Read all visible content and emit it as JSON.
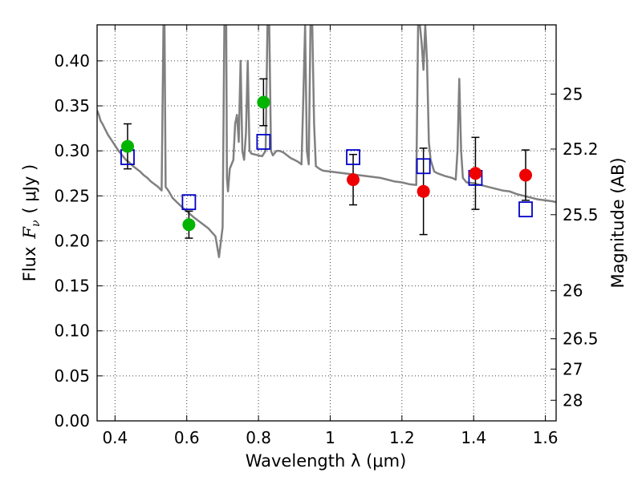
{
  "chart_data": {
    "type": "scatter",
    "xlabel": "Wavelength  λ (μm)",
    "ylabel_prefix": "Flux",
    "ylabel_symbol": "F",
    "ylabel_sub": "ν",
    "ylabel_unit": "( μJy )",
    "ylabel_right": "Magnitude (AB)",
    "xlim": [
      0.35,
      1.63
    ],
    "ylim": [
      0.0,
      0.44
    ],
    "grid": true,
    "x_ticks": [
      0.4,
      0.6,
      0.8,
      1.0,
      1.2,
      1.4,
      1.6
    ],
    "x_tick_labels": [
      "0.4",
      "0.6",
      "0.8",
      "1",
      "1.2",
      "1.4",
      "1.6"
    ],
    "y_ticks": [
      0.0,
      0.05,
      0.1,
      0.15,
      0.2,
      0.25,
      0.3,
      0.35,
      0.4
    ],
    "y_tick_labels": [
      "0.00",
      "0.05",
      "0.10",
      "0.15",
      "0.20",
      "0.25",
      "0.30",
      "0.35",
      "0.40"
    ],
    "right_ticks": [
      {
        "label": "25",
        "mag": 25.0
      },
      {
        "label": "25.2",
        "mag": 25.2
      },
      {
        "label": "25.5",
        "mag": 25.5
      },
      {
        "label": "26",
        "mag": 26.0
      },
      {
        "label": "26.5",
        "mag": 26.5
      },
      {
        "label": "27",
        "mag": 27.0
      },
      {
        "label": "28",
        "mag": 28.0
      }
    ],
    "series": [
      {
        "name": "model spectrum",
        "kind": "line",
        "color": "#808080",
        "x": [
          0.35,
          0.355,
          0.36,
          0.365,
          0.37,
          0.375,
          0.38,
          0.39,
          0.4,
          0.41,
          0.42,
          0.43,
          0.44,
          0.45,
          0.46,
          0.47,
          0.48,
          0.49,
          0.5,
          0.51,
          0.52,
          0.53,
          0.535,
          0.538,
          0.541,
          0.55,
          0.56,
          0.57,
          0.58,
          0.6,
          0.62,
          0.64,
          0.66,
          0.68,
          0.69,
          0.7,
          0.705,
          0.71,
          0.712,
          0.715,
          0.72,
          0.73,
          0.735,
          0.74,
          0.745,
          0.75,
          0.755,
          0.76,
          0.765,
          0.77,
          0.775,
          0.78,
          0.79,
          0.8,
          0.81,
          0.82,
          0.825,
          0.83,
          0.835,
          0.84,
          0.85,
          0.86,
          0.87,
          0.88,
          0.89,
          0.9,
          0.91,
          0.92,
          0.925,
          0.93,
          0.935,
          0.94,
          0.945,
          0.95,
          0.955,
          0.96,
          0.97,
          0.98,
          1.0,
          1.02,
          1.04,
          1.06,
          1.08,
          1.1,
          1.12,
          1.14,
          1.16,
          1.18,
          1.2,
          1.22,
          1.24,
          1.245,
          1.25,
          1.255,
          1.26,
          1.265,
          1.27,
          1.275,
          1.28,
          1.29,
          1.3,
          1.32,
          1.34,
          1.35,
          1.355,
          1.36,
          1.365,
          1.37,
          1.38,
          1.4,
          1.42,
          1.44,
          1.46,
          1.48,
          1.5,
          1.52,
          1.54,
          1.56,
          1.58,
          1.6,
          1.62,
          1.63
        ],
        "y": [
          0.345,
          0.34,
          0.333,
          0.33,
          0.326,
          0.322,
          0.318,
          0.312,
          0.306,
          0.3,
          0.295,
          0.29,
          0.287,
          0.283,
          0.28,
          0.277,
          0.273,
          0.27,
          0.266,
          0.263,
          0.26,
          0.256,
          0.44,
          0.44,
          0.26,
          0.255,
          0.248,
          0.244,
          0.24,
          0.233,
          0.226,
          0.22,
          0.214,
          0.205,
          0.182,
          0.215,
          0.44,
          0.44,
          0.27,
          0.255,
          0.28,
          0.29,
          0.33,
          0.34,
          0.31,
          0.4,
          0.3,
          0.29,
          0.32,
          0.4,
          0.3,
          0.297,
          0.296,
          0.295,
          0.294,
          0.3,
          0.44,
          0.44,
          0.3,
          0.295,
          0.3,
          0.3,
          0.298,
          0.295,
          0.292,
          0.29,
          0.288,
          0.285,
          0.36,
          0.44,
          0.3,
          0.285,
          0.44,
          0.44,
          0.33,
          0.283,
          0.28,
          0.278,
          0.277,
          0.276,
          0.275,
          0.274,
          0.273,
          0.272,
          0.271,
          0.27,
          0.268,
          0.266,
          0.265,
          0.263,
          0.262,
          0.44,
          0.44,
          0.42,
          0.39,
          0.44,
          0.4,
          0.31,
          0.29,
          0.277,
          0.275,
          0.272,
          0.27,
          0.268,
          0.3,
          0.38,
          0.3,
          0.27,
          0.265,
          0.264,
          0.262,
          0.26,
          0.258,
          0.256,
          0.255,
          0.252,
          0.25,
          0.248,
          0.246,
          0.245,
          0.244,
          0.243
        ]
      },
      {
        "name": "green points",
        "kind": "circle",
        "color": "#00b400",
        "points": [
          {
            "x": 0.435,
            "y": 0.305,
            "err": 0.025
          },
          {
            "x": 0.606,
            "y": 0.218,
            "err": 0.015
          },
          {
            "x": 0.814,
            "y": 0.354,
            "err": 0.026
          }
        ]
      },
      {
        "name": "red points",
        "kind": "circle",
        "color": "#ee0000",
        "points": [
          {
            "x": 1.064,
            "y": 0.268,
            "err": 0.028
          },
          {
            "x": 1.26,
            "y": 0.255,
            "err": 0.048
          },
          {
            "x": 1.405,
            "y": 0.275,
            "err": 0.04
          },
          {
            "x": 1.545,
            "y": 0.273,
            "err": 0.028
          }
        ]
      },
      {
        "name": "blue model points",
        "kind": "square",
        "color": "#0000c8",
        "points": [
          {
            "x": 0.435,
            "y": 0.293
          },
          {
            "x": 0.606,
            "y": 0.243
          },
          {
            "x": 0.814,
            "y": 0.31
          },
          {
            "x": 1.064,
            "y": 0.293
          },
          {
            "x": 1.26,
            "y": 0.283
          },
          {
            "x": 1.405,
            "y": 0.27
          },
          {
            "x": 1.545,
            "y": 0.235
          }
        ]
      }
    ]
  }
}
